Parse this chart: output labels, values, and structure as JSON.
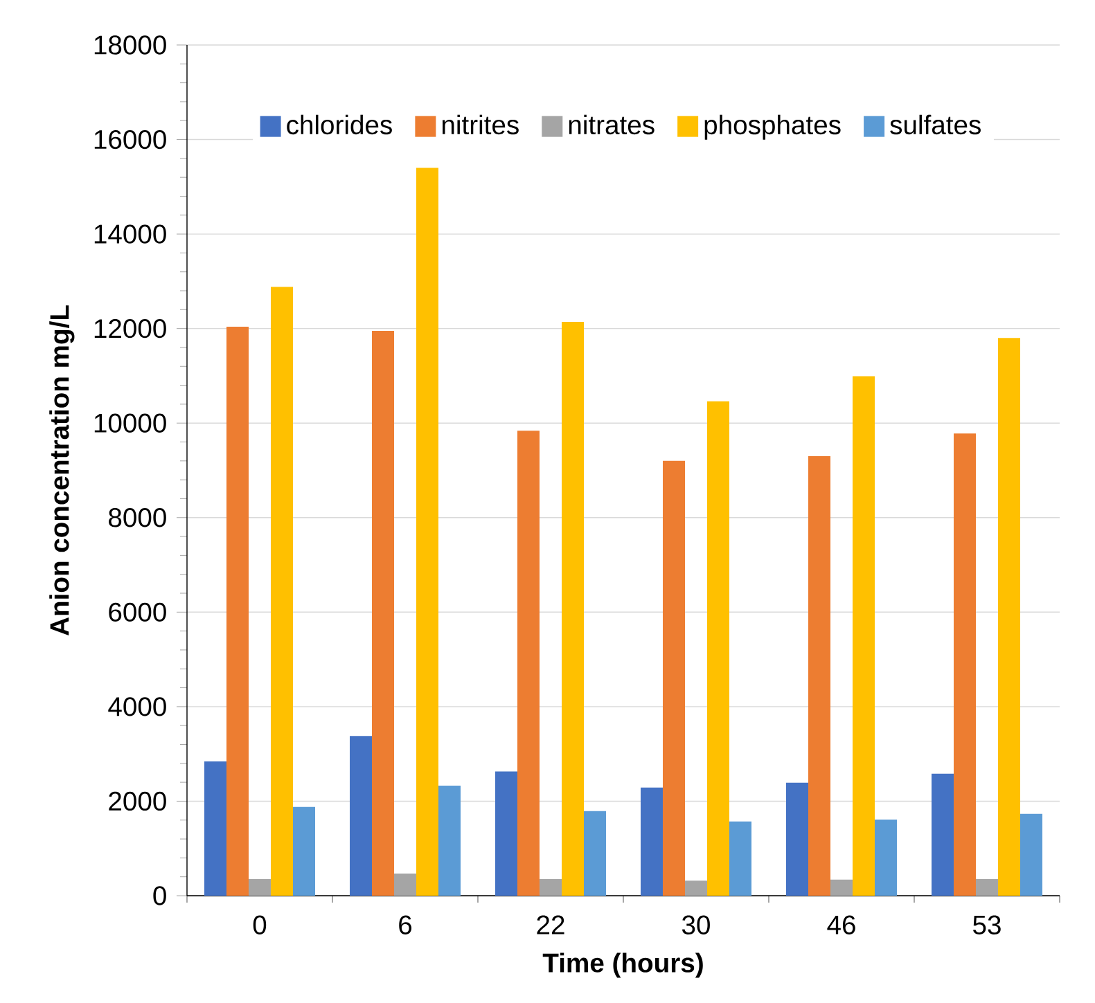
{
  "chart_data": {
    "type": "bar",
    "xlabel": "Time (hours)",
    "ylabel": "Anion concentration mg/L",
    "categories": [
      "0",
      "6",
      "22",
      "30",
      "46",
      "53"
    ],
    "series": [
      {
        "name": "chlorides",
        "color": "#4472c4",
        "values": [
          2840,
          3380,
          2630,
          2290,
          2390,
          2580
        ]
      },
      {
        "name": "nitrites",
        "color": "#ed7d31",
        "values": [
          12040,
          11950,
          9840,
          9200,
          9300,
          9780
        ]
      },
      {
        "name": "nitrates",
        "color": "#a5a5a5",
        "values": [
          350,
          470,
          350,
          320,
          340,
          350
        ]
      },
      {
        "name": "phosphates",
        "color": "#ffc000",
        "values": [
          12880,
          15400,
          12140,
          10460,
          10990,
          11800
        ]
      },
      {
        "name": "sulfates",
        "color": "#5b9bd5",
        "values": [
          1880,
          2330,
          1790,
          1570,
          1610,
          1730
        ]
      }
    ],
    "ylim": [
      0,
      18000
    ],
    "yticks": [
      0,
      2000,
      4000,
      6000,
      8000,
      10000,
      12000,
      14000,
      16000,
      18000
    ],
    "grid": "y",
    "legend": "top"
  }
}
